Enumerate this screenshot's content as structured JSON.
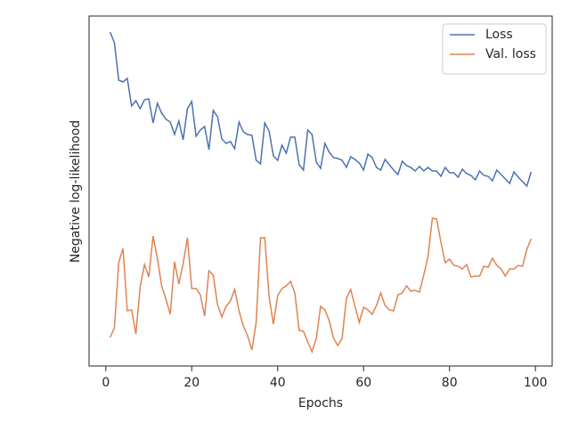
{
  "chart_data": {
    "type": "line",
    "xlabel": "Epochs",
    "ylabel": "Negative log-likelihood",
    "x": [
      1,
      2,
      3,
      4,
      5,
      6,
      7,
      8,
      9,
      10,
      11,
      12,
      13,
      14,
      15,
      16,
      17,
      18,
      19,
      20,
      21,
      22,
      23,
      24,
      25,
      26,
      27,
      28,
      29,
      30,
      31,
      32,
      33,
      34,
      35,
      36,
      37,
      38,
      39,
      40,
      41,
      42,
      43,
      44,
      45,
      46,
      47,
      48,
      49,
      50,
      51,
      52,
      53,
      54,
      55,
      56,
      57,
      58,
      59,
      60,
      61,
      62,
      63,
      64,
      65,
      66,
      67,
      68,
      69,
      70,
      71,
      72,
      73,
      74,
      75,
      76,
      77,
      78,
      79,
      80,
      81,
      82,
      83,
      84,
      85,
      86,
      87,
      88,
      89,
      90,
      91,
      92,
      93,
      94,
      95,
      96,
      97,
      98,
      99
    ],
    "series": [
      {
        "name": "Loss",
        "color": "#4c72b0",
        "values": [
          375,
          363,
          321,
          319,
          323,
          292,
          298,
          289,
          299,
          300,
          273,
          295,
          284,
          277,
          274,
          260,
          275,
          254,
          289,
          297,
          258,
          265,
          269,
          243,
          287,
          280,
          255,
          250,
          252,
          244,
          274,
          263,
          260,
          259,
          231,
          227,
          273,
          264,
          236,
          231,
          248,
          239,
          257,
          257,
          226,
          220,
          265,
          260,
          229,
          222,
          250,
          240,
          234,
          233,
          231,
          223,
          235,
          232,
          228,
          220,
          238,
          234,
          223,
          220,
          232,
          226,
          220,
          215,
          230,
          225,
          223,
          219,
          224,
          219,
          223,
          219,
          219,
          213,
          223,
          217,
          217,
          212,
          221,
          216,
          214,
          209,
          219,
          214,
          213,
          208,
          220,
          215,
          210,
          205,
          218,
          212,
          207,
          202,
          218
        ]
      },
      {
        "name": "Val. loss",
        "color": "#dd8452",
        "values": [
          32,
          43,
          116,
          132,
          62,
          63,
          36,
          89,
          114,
          100,
          146,
          121,
          90,
          75,
          58,
          117,
          92,
          115,
          144,
          87,
          87,
          80,
          56,
          107,
          102,
          69,
          55,
          67,
          73,
          86,
          62,
          45,
          34,
          18,
          49,
          144,
          144,
          78,
          47,
          79,
          87,
          90,
          95,
          82,
          40,
          39,
          27,
          16,
          31,
          67,
          63,
          51,
          31,
          23,
          31,
          76,
          86,
          67,
          49,
          66,
          63,
          58,
          68,
          82,
          68,
          63,
          62,
          80,
          82,
          90,
          84,
          85,
          83,
          102,
          123,
          166,
          165,
          139,
          116,
          120,
          113,
          112,
          109,
          114,
          100,
          101,
          101,
          112,
          111,
          121,
          113,
          109,
          101,
          109,
          109,
          113,
          112,
          131,
          143
        ]
      }
    ],
    "xlim": [
      -3.9,
      103.9
    ],
    "xticks": [
      0,
      20,
      40,
      60,
      80,
      100
    ],
    "ylim": [
      0,
      393
    ],
    "legend": "upper right",
    "grid": false
  }
}
